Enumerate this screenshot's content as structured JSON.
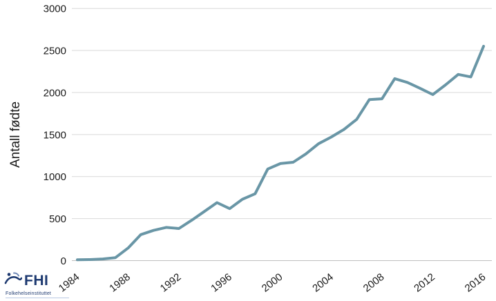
{
  "chart_data": {
    "type": "line",
    "title": "",
    "xlabel": "",
    "ylabel": "Antall fødte",
    "ylim": [
      0,
      3000
    ],
    "yticks": [
      0,
      500,
      1000,
      1500,
      2000,
      2500,
      3000
    ],
    "xticks": [
      1984,
      1988,
      1992,
      1996,
      2000,
      2004,
      2008,
      2012,
      2016
    ],
    "grid": "horizontal",
    "legend": "none",
    "x": [
      1984,
      1985,
      1986,
      1987,
      1988,
      1989,
      1990,
      1991,
      1992,
      1993,
      1994,
      1995,
      1996,
      1997,
      1998,
      1999,
      2000,
      2001,
      2002,
      2003,
      2004,
      2005,
      2006,
      2007,
      2008,
      2009,
      2010,
      2011,
      2012,
      2013,
      2014,
      2015,
      2016
    ],
    "series": [
      {
        "name": "Antall fødte",
        "color": "#6996a6",
        "values": [
          10,
          12,
          20,
          35,
          150,
          310,
          360,
          395,
          382,
          480,
          585,
          690,
          618,
          730,
          795,
          1090,
          1155,
          1170,
          1270,
          1390,
          1470,
          1560,
          1680,
          1915,
          1925,
          2165,
          2120,
          2050,
          1975,
          2090,
          2215,
          2185,
          2550
        ]
      }
    ]
  },
  "colors": {
    "gridline": "#d9d9d9",
    "axis_line": "#bfbfbf",
    "tick_text": "#1a1a1a",
    "logo": "#1d3970"
  },
  "branding": {
    "logo_acronym": "FHI",
    "logo_subtext": "Folkehelseinstituttet"
  }
}
